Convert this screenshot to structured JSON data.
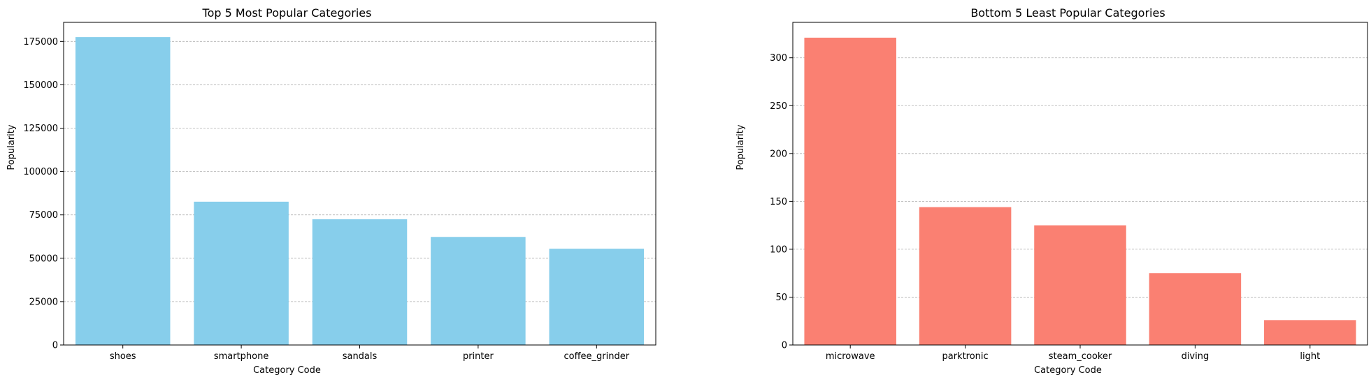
{
  "chart_data": [
    {
      "type": "bar",
      "title": "Top 5 Most Popular Categories",
      "xlabel": "Category Code",
      "ylabel": "Popularity",
      "categories": [
        "shoes",
        "smartphone",
        "sandals",
        "printer",
        "coffee_grinder"
      ],
      "values": [
        177500,
        82600,
        72500,
        62300,
        55500
      ],
      "ylim": [
        0,
        186000
      ],
      "yticks": [
        0,
        25000,
        50000,
        75000,
        100000,
        125000,
        150000,
        175000
      ],
      "bar_color": "#87ceeb",
      "grid": "y-dashed"
    },
    {
      "type": "bar",
      "title": "Bottom 5 Least Popular Categories",
      "xlabel": "Category Code",
      "ylabel": "Popularity",
      "categories": [
        "microwave",
        "parktronic",
        "steam_cooker",
        "diving",
        "light"
      ],
      "values": [
        321,
        144,
        125,
        75,
        26
      ],
      "ylim": [
        0,
        337
      ],
      "yticks": [
        0,
        50,
        100,
        150,
        200,
        250,
        300
      ],
      "bar_color": "#fa8072",
      "grid": "y-dashed"
    }
  ]
}
